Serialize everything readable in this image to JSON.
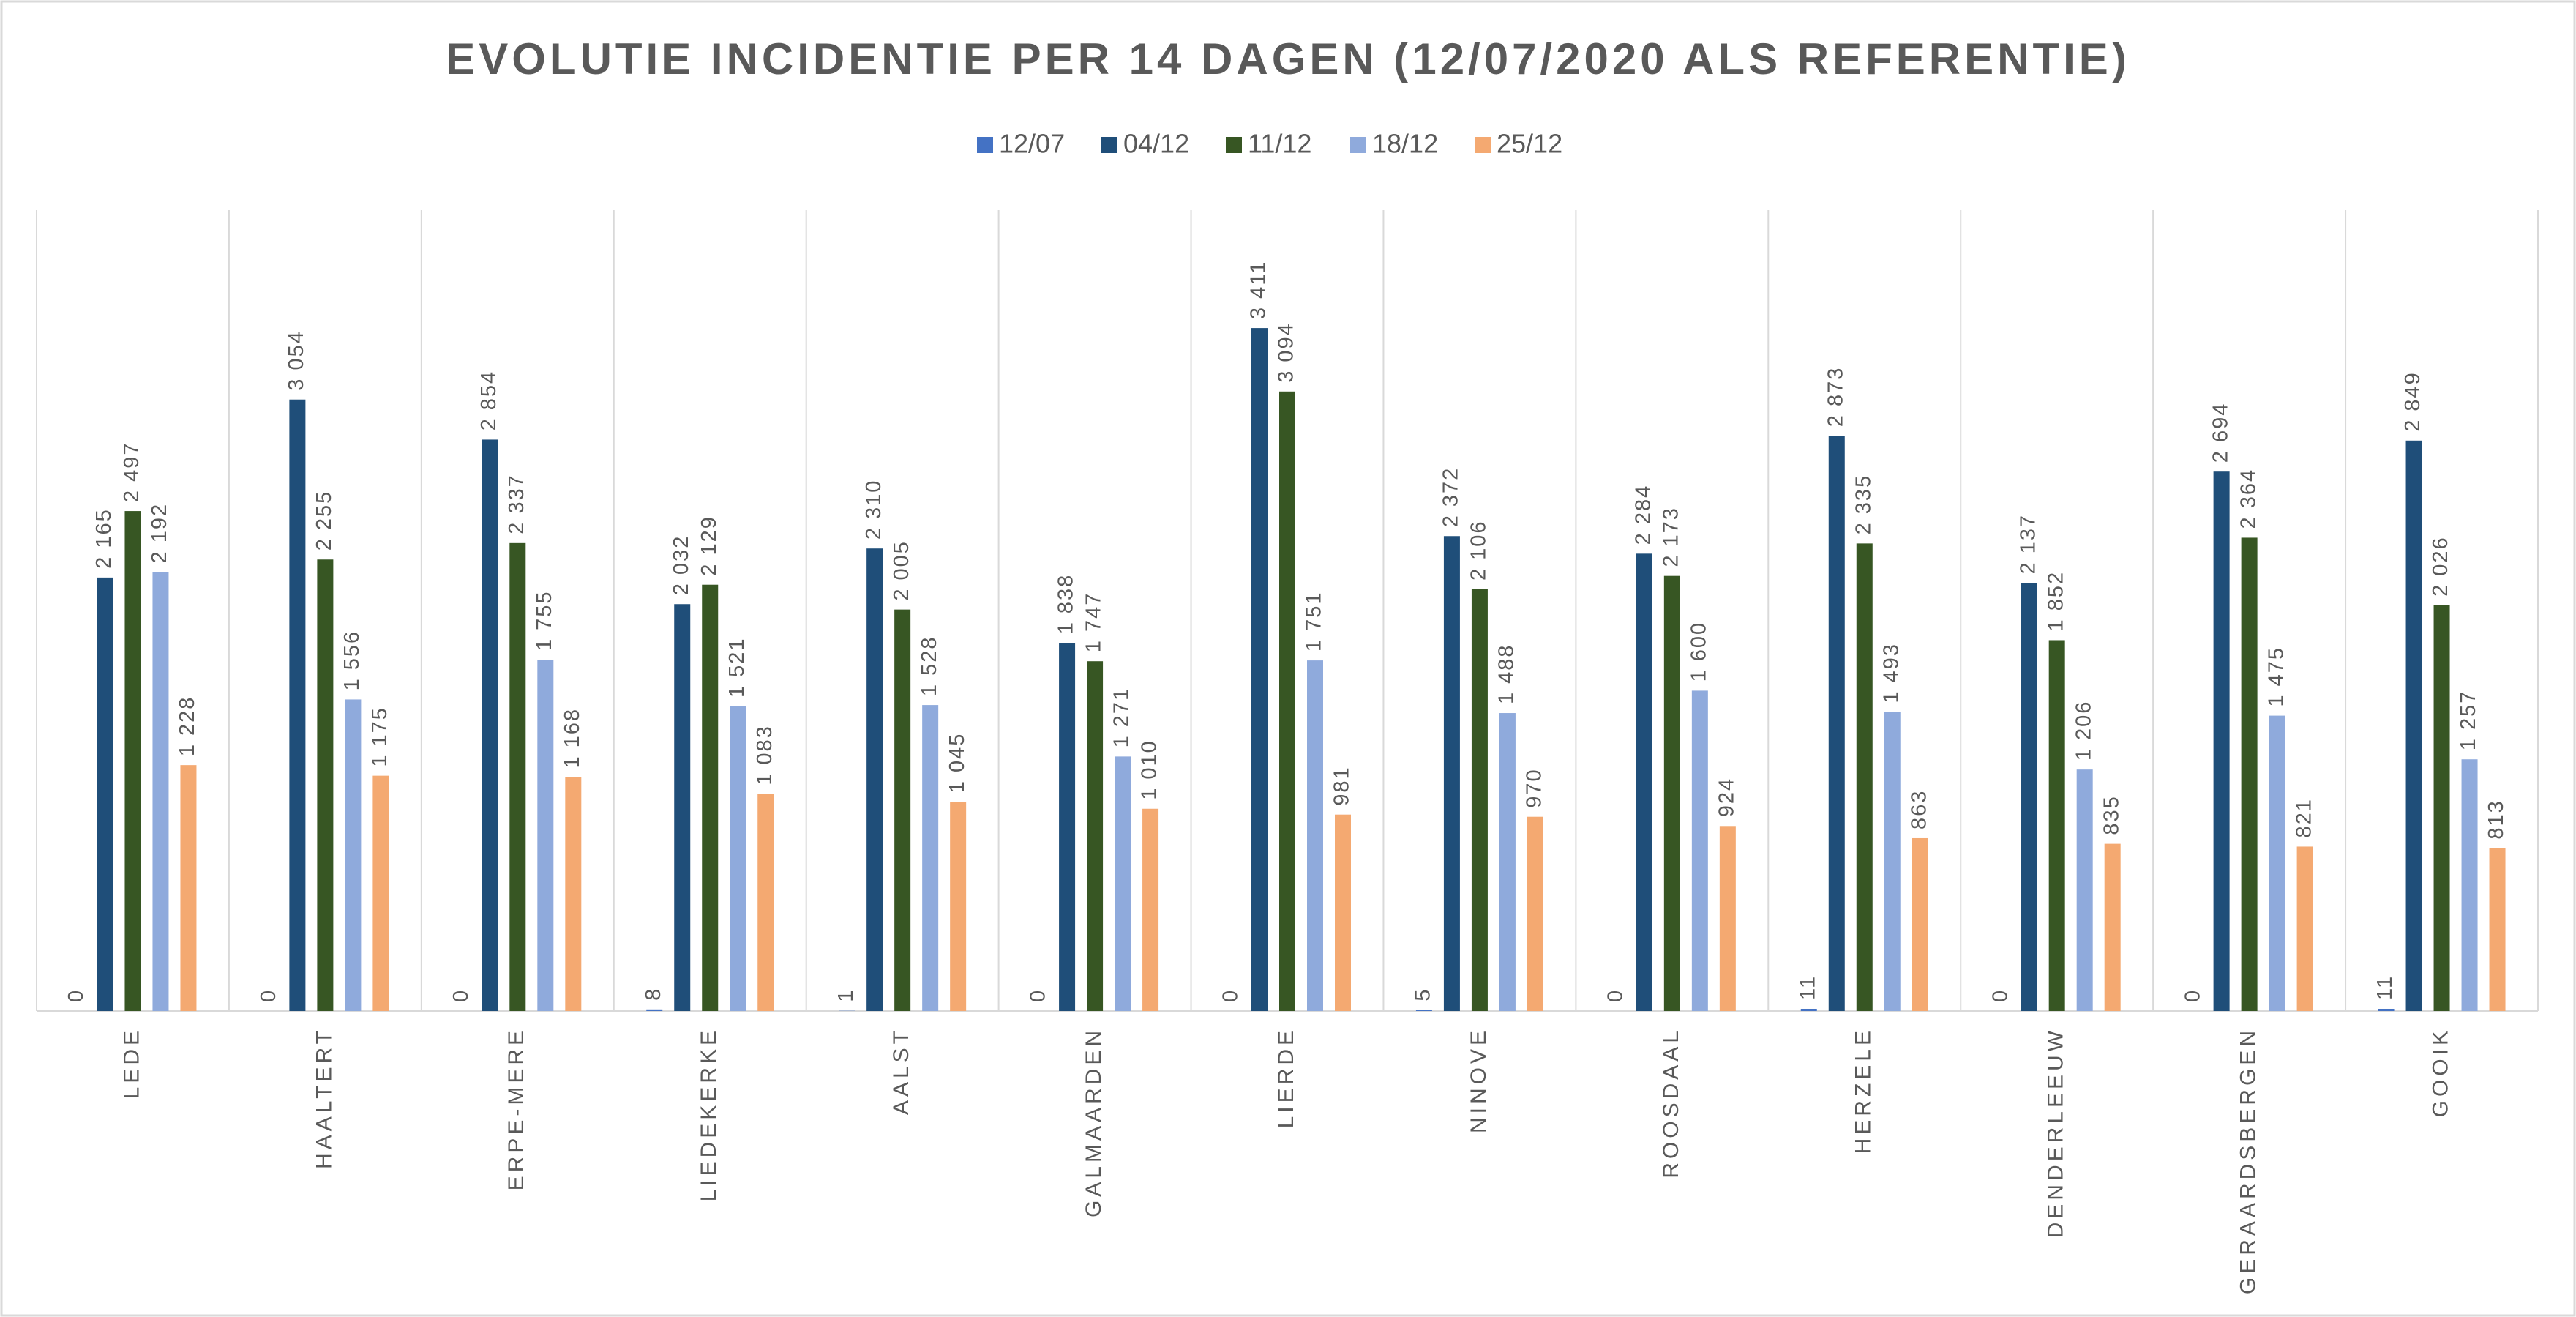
{
  "chart_data": {
    "type": "bar",
    "title": "EVOLUTIE INCIDENTIE PER 14 DAGEN (12/07/2020 ALS REFERENTIE)",
    "categories": [
      "LEDE",
      "HAALTERT",
      "ERPE-MERE",
      "LIEDEKERKE",
      "AALST",
      "GALMAARDEN",
      "LIERDE",
      "NINOVE",
      "ROOSDAAL",
      "HERZELE",
      "DENDERLEEUW",
      "GERAARDSBERGEN",
      "GOOIK"
    ],
    "series": [
      {
        "name": "12/07",
        "color": "#4472c4",
        "values": [
          0,
          0,
          0,
          8,
          1,
          0,
          0,
          5,
          0,
          11,
          0,
          0,
          11
        ]
      },
      {
        "name": "04/12",
        "color": "#1f4e79",
        "values": [
          2165,
          3054,
          2854,
          2032,
          2310,
          1838,
          3411,
          2372,
          2284,
          2873,
          2137,
          2694,
          2849
        ],
        "value_labels": [
          "2 165",
          "3 054",
          "2 854",
          "2 032",
          "2 310",
          "1 838",
          "3 411",
          "2 372",
          "2 284",
          "2 873",
          "2 137",
          "2 694",
          "2 849"
        ]
      },
      {
        "name": "11/12",
        "color": "#375623",
        "values": [
          2497,
          2255,
          2337,
          2129,
          2005,
          1747,
          3094,
          2106,
          2173,
          2335,
          1852,
          2364,
          2026
        ],
        "value_labels": [
          "2 497",
          "2 255",
          "2 337",
          "2 129",
          "2 005",
          "1 747",
          "3 094",
          "2 106",
          "2 173",
          "2 335",
          "1 852",
          "2 364",
          "2 026"
        ]
      },
      {
        "name": "18/12",
        "color": "#8faadc",
        "values": [
          2192,
          1556,
          1755,
          1521,
          1528,
          1271,
          1751,
          1488,
          1600,
          1493,
          1206,
          1475,
          1257
        ],
        "value_labels": [
          "2 192",
          "1 556",
          "1 755",
          "1 521",
          "1 528",
          "1 271",
          "1 751",
          "1 488",
          "1 600",
          "1 493",
          "1 206",
          "1 475",
          "1 257"
        ]
      },
      {
        "name": "25/12",
        "color": "#f4a971",
        "values": [
          1228,
          1175,
          1168,
          1083,
          1045,
          1010,
          981,
          970,
          924,
          863,
          835,
          821,
          813
        ],
        "value_labels": [
          "1 228",
          "1 175",
          "1 168",
          "1 083",
          "1 045",
          "1 010",
          "981",
          "970",
          "924",
          "863",
          "835",
          "821",
          "813"
        ]
      }
    ],
    "ylim": [
      0,
      4000
    ],
    "legend": "top"
  }
}
